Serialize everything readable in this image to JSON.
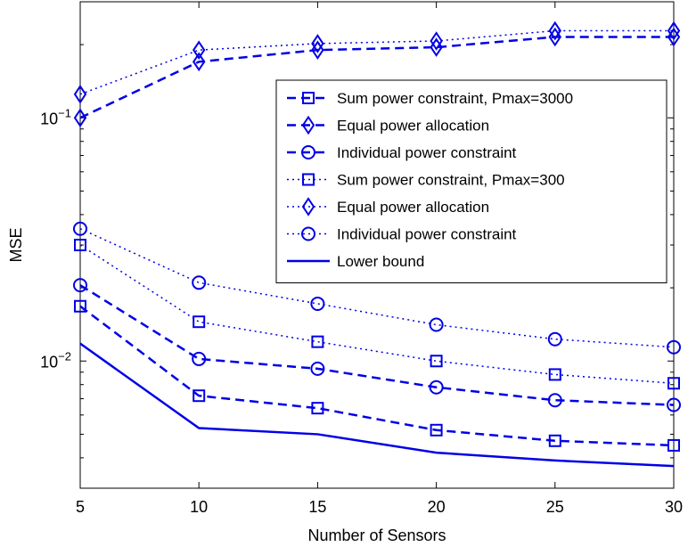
{
  "chart_data": {
    "type": "line",
    "title": "",
    "xlabel": "Number of Sensors",
    "ylabel": "MSE",
    "x": [
      5,
      10,
      15,
      20,
      25,
      30
    ],
    "xlim": [
      5,
      30
    ],
    "ylim": [
      0.003,
      0.3
    ],
    "yscale": "log",
    "xticks": [
      "5",
      "10",
      "15",
      "20",
      "25",
      "30"
    ],
    "yticks": [
      {
        "value": 0.1,
        "base": "10",
        "exp": "−1"
      },
      {
        "value": 0.01,
        "base": "10",
        "exp": "−2"
      }
    ],
    "grid": false,
    "legend_position": "top-right",
    "color": "#0000e6",
    "series": [
      {
        "name": "Sum power constraint, Pmax=3000",
        "linestyle": "dashed",
        "marker": "square",
        "values": [
          0.0168,
          0.0072,
          0.0064,
          0.0052,
          0.0047,
          0.0045
        ]
      },
      {
        "name": "Equal power allocation",
        "linestyle": "dashed",
        "marker": "diamond",
        "values": [
          0.1,
          0.17,
          0.19,
          0.195,
          0.215,
          0.215
        ]
      },
      {
        "name": "Individual power constraint",
        "linestyle": "dashed",
        "marker": "circle",
        "values": [
          0.0205,
          0.0102,
          0.0093,
          0.0078,
          0.0069,
          0.0066
        ]
      },
      {
        "name": "Sum power constraint, Pmax=300",
        "linestyle": "dotted",
        "marker": "square",
        "values": [
          0.03,
          0.0145,
          0.012,
          0.01,
          0.0088,
          0.0081
        ]
      },
      {
        "name": "Equal power allocation",
        "linestyle": "dotted",
        "marker": "diamond",
        "values": [
          0.125,
          0.19,
          0.202,
          0.207,
          0.228,
          0.228
        ]
      },
      {
        "name": "Individual power constraint",
        "linestyle": "dotted",
        "marker": "circle",
        "values": [
          0.035,
          0.021,
          0.0172,
          0.0141,
          0.0123,
          0.0114
        ]
      },
      {
        "name": "Lower bound",
        "linestyle": "solid",
        "marker": "none",
        "values": [
          0.0118,
          0.0053,
          0.005,
          0.0042,
          0.0039,
          0.0037
        ]
      }
    ]
  }
}
